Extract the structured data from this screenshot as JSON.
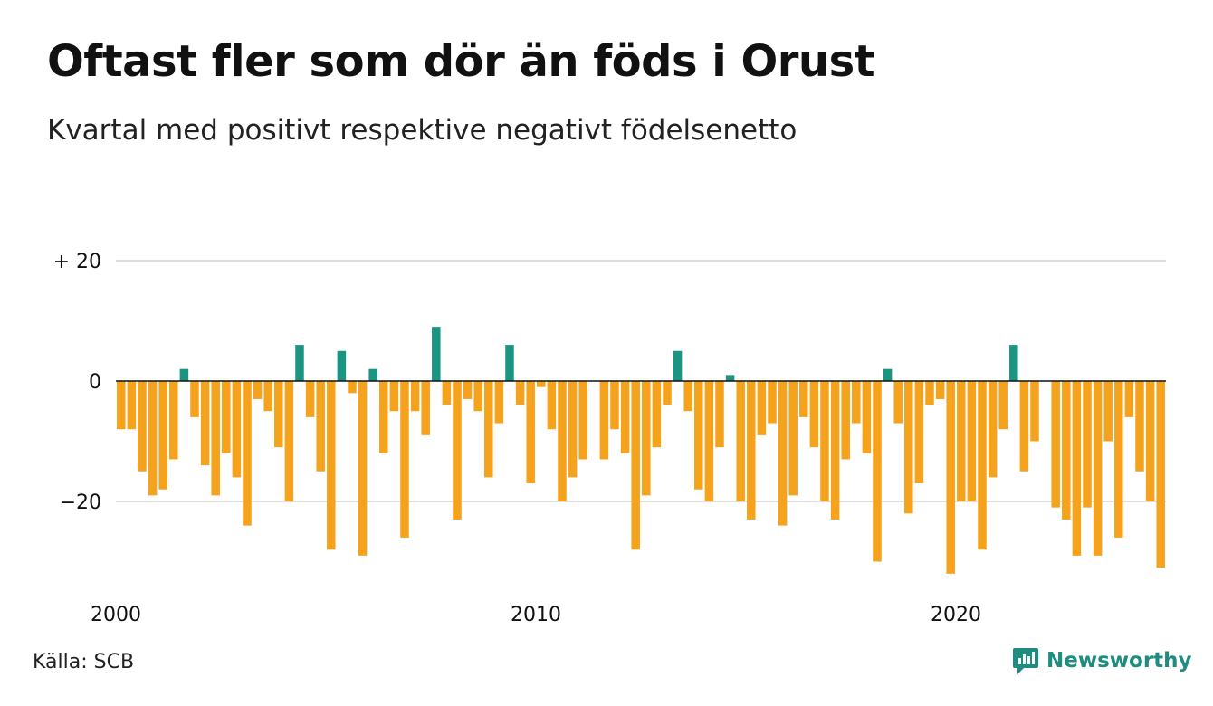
{
  "title": "Oftast fler som dör än föds i Orust",
  "subtitle": "Kvartal med positivt respektive negativt födelsenetto",
  "source": "Källa: SCB",
  "brand": "Newsworthy",
  "brand_icon": "newsworthy-logo-icon",
  "colors": {
    "positive": "#1b9582",
    "negative": "#f5a21d",
    "grid": "#dddddd",
    "zero": "#111111",
    "brand": "#1e8c7e"
  },
  "chart_data": {
    "type": "bar",
    "title": "Oftast fler som dör än föds i Orust",
    "subtitle": "Kvartal med positivt respektive negativt födelsenetto",
    "x_start": 2000,
    "x_step": 0.25,
    "x_ticks": [
      {
        "value": 2000,
        "label": "2000"
      },
      {
        "value": 2010,
        "label": "2010"
      },
      {
        "value": 2020,
        "label": "2020"
      }
    ],
    "y_ticks": [
      {
        "value": 20,
        "label": "+ 20"
      },
      {
        "value": 0,
        "label": "0"
      },
      {
        "value": -20,
        "label": "−20"
      }
    ],
    "ylim": [
      -33,
      20
    ],
    "grid": true,
    "values": [
      -8,
      -8,
      -15,
      -19,
      -18,
      -13,
      2,
      -6,
      -14,
      -19,
      -12,
      -16,
      -24,
      -3,
      -5,
      -11,
      -20,
      6,
      -6,
      -15,
      -28,
      5,
      -2,
      -29,
      2,
      -12,
      -5,
      -26,
      -5,
      -9,
      9,
      -4,
      -23,
      -3,
      -5,
      -16,
      -7,
      6,
      -4,
      -17,
      -1,
      -8,
      -20,
      -16,
      -13,
      0,
      -13,
      -8,
      -12,
      -28,
      -19,
      -11,
      -4,
      5,
      -5,
      -18,
      -20,
      -11,
      1,
      -20,
      -23,
      -9,
      -7,
      -24,
      -19,
      -6,
      -11,
      -20,
      -23,
      -13,
      -7,
      -12,
      -30,
      2,
      -7,
      -22,
      -17,
      -4,
      -3,
      -32,
      -20,
      -20,
      -28,
      -16,
      -8,
      6,
      -15,
      -10,
      0,
      -21,
      -23,
      -29,
      -21,
      -29,
      -10,
      -26,
      -6,
      -15,
      -20,
      -31
    ]
  }
}
